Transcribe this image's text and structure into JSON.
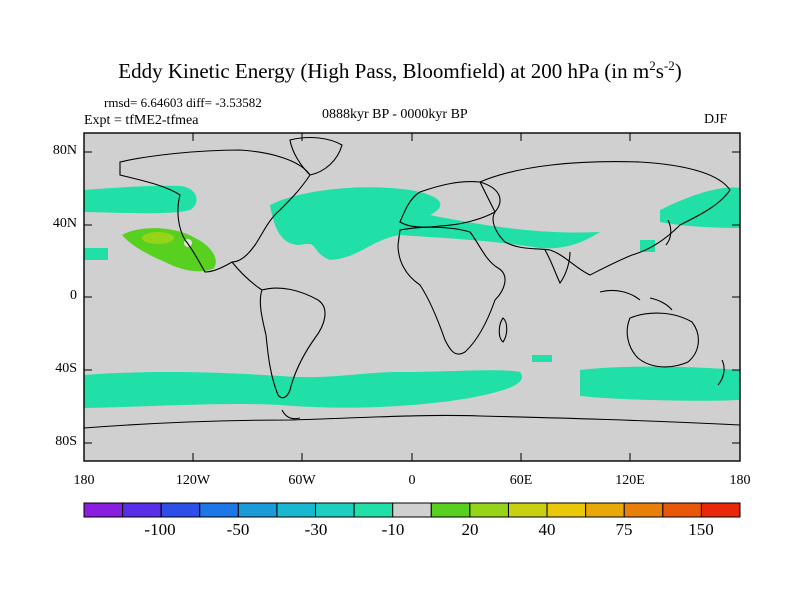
{
  "title": {
    "main": "Eddy Kinetic Energy (High Pass, Bloomfield) at 200 hPa (in m",
    "sup1": "2",
    "mid": "s",
    "sup2": "-2",
    "end": ")"
  },
  "stats": {
    "rmsd": "rmsd= 6.64603 diff= -3.53582",
    "expt": "Expt = tfME2-tfmea",
    "period": "0888kyr BP - 0000kyr BP",
    "season": "DJF"
  },
  "lat_labels": [
    "80N",
    "40N",
    "0",
    "40S",
    "80S"
  ],
  "lon_labels": [
    "180",
    "120W",
    "60W",
    "0",
    "60E",
    "120E",
    "180"
  ],
  "colorbar": {
    "labels": [
      "-100",
      "-50",
      "-30",
      "-10",
      "20",
      "40",
      "75",
      "150"
    ],
    "colors": [
      "#8a1ee0",
      "#5a2ee8",
      "#2e4ee8",
      "#1c78e6",
      "#1a9ad8",
      "#1ab8d0",
      "#1ccfc0",
      "#20e0a8",
      "#d0d0d0",
      "#58d020",
      "#96d418",
      "#c8d010",
      "#e8c808",
      "#e8a808",
      "#e88008",
      "#e85808",
      "#e82808"
    ]
  },
  "map_colors": {
    "ocean_land": "#d0d0d0",
    "positive_small": "#58d020",
    "positive_mid": "#96d418",
    "negative_small": "#20e0a8",
    "negative_mid": "#1ccfc0"
  }
}
